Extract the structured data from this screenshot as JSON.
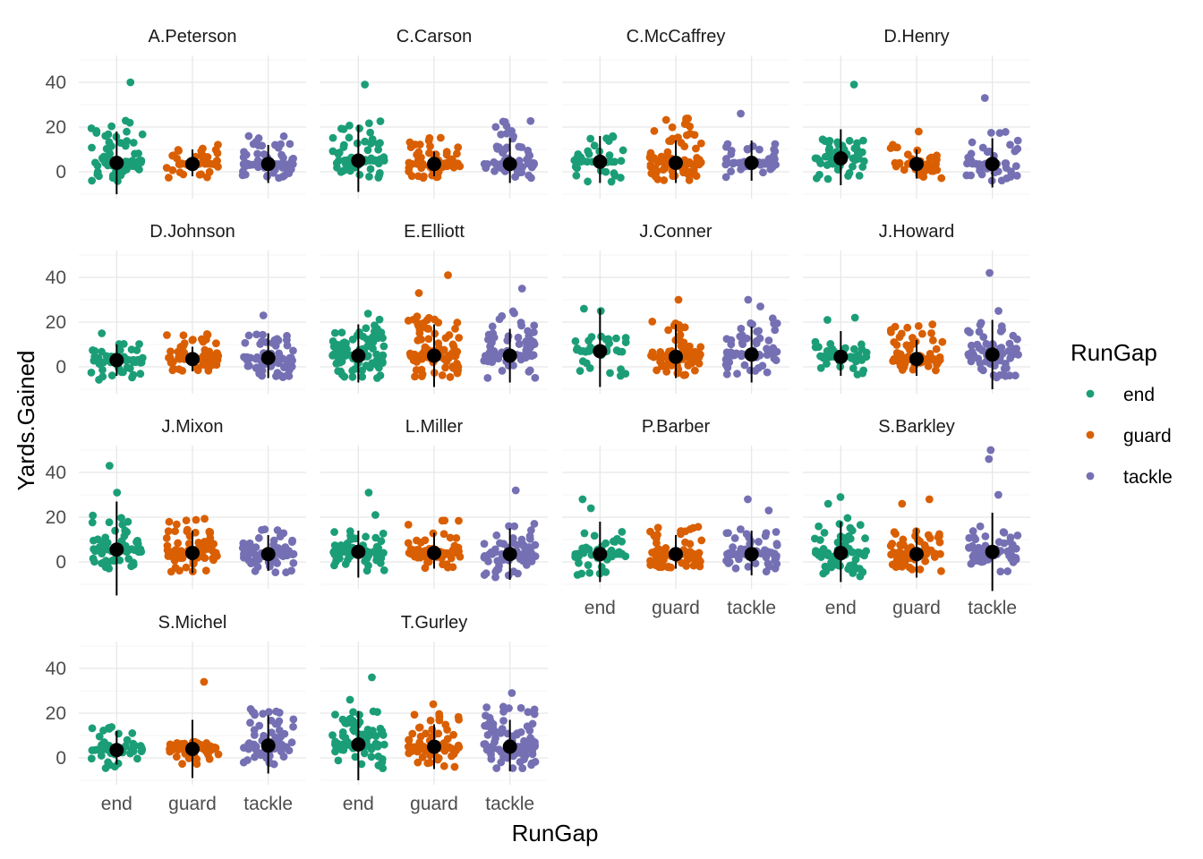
{
  "chart_data": {
    "type": "scatter",
    "subtype": "faceted jitter strip plot with mean point and range line",
    "x_label": "RunGap",
    "y_label": "Yards.Gained",
    "categories": [
      "end",
      "guard",
      "tackle"
    ],
    "y_ticks": [
      0,
      20,
      40
    ],
    "ylim": [
      -12,
      52
    ],
    "grid": true,
    "facet_layout": {
      "rows": 4,
      "cols": 4
    },
    "legend": {
      "title": "RunGap",
      "position": "right",
      "entries": [
        {
          "label": "end",
          "color": "#1B9E77"
        },
        {
          "label": "guard",
          "color": "#D95F02"
        },
        {
          "label": "tackle",
          "color": "#7570B3"
        }
      ]
    },
    "summary_style": {
      "mean_point_color": "#000000",
      "line_color": "#000000"
    },
    "facets": [
      {
        "name": "A.Peterson",
        "groups": [
          {
            "gap": "end",
            "n": 70,
            "mean": 4.0,
            "low": -10,
            "high": 18,
            "min": -5,
            "max": 23,
            "outliers": [
              40
            ]
          },
          {
            "gap": "guard",
            "n": 40,
            "mean": 3.5,
            "low": -2,
            "high": 10,
            "min": -4,
            "max": 13,
            "outliers": []
          },
          {
            "gap": "tackle",
            "n": 70,
            "mean": 3.5,
            "low": -5,
            "high": 12,
            "min": -4,
            "max": 17,
            "outliers": []
          }
        ]
      },
      {
        "name": "C.Carson",
        "groups": [
          {
            "gap": "end",
            "n": 60,
            "mean": 5.0,
            "low": -9,
            "high": 21,
            "min": -4,
            "max": 23,
            "outliers": [
              39
            ]
          },
          {
            "gap": "guard",
            "n": 75,
            "mean": 3.5,
            "low": -2,
            "high": 9,
            "min": -3,
            "max": 16,
            "outliers": []
          },
          {
            "gap": "tackle",
            "n": 65,
            "mean": 3.5,
            "low": -5,
            "high": 15,
            "min": -4,
            "max": 24,
            "outliers": []
          }
        ]
      },
      {
        "name": "C.McCaffrey",
        "groups": [
          {
            "gap": "end",
            "n": 40,
            "mean": 4.5,
            "low": -5,
            "high": 16,
            "min": -6,
            "max": 17,
            "outliers": []
          },
          {
            "gap": "guard",
            "n": 90,
            "mean": 4.0,
            "low": -5,
            "high": 14,
            "min": -4,
            "max": 24,
            "outliers": []
          },
          {
            "gap": "tackle",
            "n": 50,
            "mean": 4.0,
            "low": -4,
            "high": 14,
            "min": -3,
            "max": 13,
            "outliers": [
              26
            ]
          }
        ]
      },
      {
        "name": "D.Henry",
        "groups": [
          {
            "gap": "end",
            "n": 60,
            "mean": 6.0,
            "low": -6,
            "high": 19,
            "min": -4,
            "max": 15,
            "outliers": [
              39
            ]
          },
          {
            "gap": "guard",
            "n": 40,
            "mean": 3.5,
            "low": -3,
            "high": 10,
            "min": -3,
            "max": 14,
            "outliers": [
              18
            ]
          },
          {
            "gap": "tackle",
            "n": 50,
            "mean": 3.5,
            "low": -7,
            "high": 15,
            "min": -5,
            "max": 18,
            "outliers": [
              33
            ]
          }
        ]
      },
      {
        "name": "D.Johnson",
        "groups": [
          {
            "gap": "end",
            "n": 50,
            "mean": 3.0,
            "low": -4,
            "high": 10,
            "min": -6,
            "max": 11,
            "outliers": [
              15
            ]
          },
          {
            "gap": "guard",
            "n": 60,
            "mean": 3.5,
            "low": -2,
            "high": 9,
            "min": -2,
            "max": 15,
            "outliers": []
          },
          {
            "gap": "tackle",
            "n": 65,
            "mean": 4.0,
            "low": -5,
            "high": 15,
            "min": -6,
            "max": 15,
            "outliers": [
              23
            ]
          }
        ]
      },
      {
        "name": "E.Elliott",
        "groups": [
          {
            "gap": "end",
            "n": 100,
            "mean": 5.0,
            "low": -7,
            "high": 19,
            "min": -5,
            "max": 24,
            "outliers": []
          },
          {
            "gap": "guard",
            "n": 95,
            "mean": 5.0,
            "low": -9,
            "high": 19,
            "min": -5,
            "max": 23,
            "outliers": [
              33,
              41
            ]
          },
          {
            "gap": "tackle",
            "n": 75,
            "mean": 5.0,
            "low": -7,
            "high": 17,
            "min": -5,
            "max": 25,
            "outliers": [
              35
            ]
          }
        ]
      },
      {
        "name": "J.Conner",
        "groups": [
          {
            "gap": "end",
            "n": 40,
            "mean": 7.0,
            "low": -9,
            "high": 26,
            "min": -5,
            "max": 14,
            "outliers": [
              25,
              26
            ]
          },
          {
            "gap": "guard",
            "n": 80,
            "mean": 4.5,
            "low": -5,
            "high": 19,
            "min": -4,
            "max": 22,
            "outliers": [
              30
            ]
          },
          {
            "gap": "tackle",
            "n": 60,
            "mean": 5.5,
            "low": -7,
            "high": 18,
            "min": -5,
            "max": 22,
            "outliers": [
              27,
              30
            ]
          }
        ]
      },
      {
        "name": "J.Howard",
        "groups": [
          {
            "gap": "end",
            "n": 50,
            "mean": 4.5,
            "low": -4,
            "high": 16,
            "min": -5,
            "max": 13,
            "outliers": [
              21,
              22
            ]
          },
          {
            "gap": "guard",
            "n": 75,
            "mean": 3.5,
            "low": -4,
            "high": 12,
            "min": -3,
            "max": 19,
            "outliers": []
          },
          {
            "gap": "tackle",
            "n": 70,
            "mean": 5.5,
            "low": -10,
            "high": 21,
            "min": -5,
            "max": 21,
            "outliers": [
              25,
              42
            ]
          }
        ]
      },
      {
        "name": "J.Mixon",
        "groups": [
          {
            "gap": "end",
            "n": 60,
            "mean": 5.5,
            "low": -15,
            "high": 27,
            "min": -3,
            "max": 22,
            "outliers": [
              31,
              43
            ]
          },
          {
            "gap": "guard",
            "n": 80,
            "mean": 4.0,
            "low": -5,
            "high": 14,
            "min": -5,
            "max": 20,
            "outliers": []
          },
          {
            "gap": "tackle",
            "n": 65,
            "mean": 3.5,
            "low": -4,
            "high": 12,
            "min": -6,
            "max": 17,
            "outliers": []
          }
        ]
      },
      {
        "name": "L.Miller",
        "groups": [
          {
            "gap": "end",
            "n": 55,
            "mean": 4.5,
            "low": -7,
            "high": 14,
            "min": -4,
            "max": 15,
            "outliers": [
              21,
              31
            ]
          },
          {
            "gap": "guard",
            "n": 70,
            "mean": 4.0,
            "low": -3,
            "high": 13,
            "min": -3,
            "max": 19,
            "outliers": []
          },
          {
            "gap": "tackle",
            "n": 65,
            "mean": 3.5,
            "low": -8,
            "high": 15,
            "min": -7,
            "max": 18,
            "outliers": [
              32
            ]
          }
        ]
      },
      {
        "name": "P.Barber",
        "groups": [
          {
            "gap": "end",
            "n": 40,
            "mean": 3.5,
            "low": -9,
            "high": 18,
            "min": -6,
            "max": 14,
            "outliers": [
              24,
              28
            ]
          },
          {
            "gap": "guard",
            "n": 80,
            "mean": 3.5,
            "low": -3,
            "high": 12,
            "min": -3,
            "max": 16,
            "outliers": []
          },
          {
            "gap": "tackle",
            "n": 60,
            "mean": 3.5,
            "low": -6,
            "high": 14,
            "min": -6,
            "max": 15,
            "outliers": [
              23,
              28
            ]
          }
        ]
      },
      {
        "name": "S.Barkley",
        "groups": [
          {
            "gap": "end",
            "n": 75,
            "mean": 4.0,
            "low": -9,
            "high": 18,
            "min": -7,
            "max": 20,
            "outliers": [
              26,
              29
            ]
          },
          {
            "gap": "guard",
            "n": 70,
            "mean": 3.5,
            "low": -7,
            "high": 15,
            "min": -5,
            "max": 14,
            "outliers": [
              26,
              28
            ]
          },
          {
            "gap": "tackle",
            "n": 65,
            "mean": 4.5,
            "low": -13,
            "high": 22,
            "min": -5,
            "max": 16,
            "outliers": [
              30,
              46,
              50
            ]
          }
        ]
      },
      {
        "name": "S.Michel",
        "groups": [
          {
            "gap": "end",
            "n": 60,
            "mean": 3.5,
            "low": -3,
            "high": 12,
            "min": -5,
            "max": 14,
            "outliers": []
          },
          {
            "gap": "guard",
            "n": 60,
            "mean": 4.0,
            "low": -9,
            "high": 17,
            "min": -3,
            "max": 8,
            "outliers": [
              34
            ]
          },
          {
            "gap": "tackle",
            "n": 70,
            "mean": 5.5,
            "low": -7,
            "high": 19,
            "min": -3,
            "max": 22,
            "outliers": []
          }
        ]
      },
      {
        "name": "T.Gurley",
        "groups": [
          {
            "gap": "end",
            "n": 80,
            "mean": 6.0,
            "low": -10,
            "high": 21,
            "min": -5,
            "max": 21,
            "outliers": [
              26,
              36
            ]
          },
          {
            "gap": "guard",
            "n": 70,
            "mean": 5.0,
            "low": -5,
            "high": 15,
            "min": -4,
            "max": 20,
            "outliers": [
              24
            ]
          },
          {
            "gap": "tackle",
            "n": 90,
            "mean": 5.0,
            "low": -6,
            "high": 17,
            "min": -5,
            "max": 23,
            "outliers": [
              29
            ]
          }
        ]
      }
    ]
  }
}
